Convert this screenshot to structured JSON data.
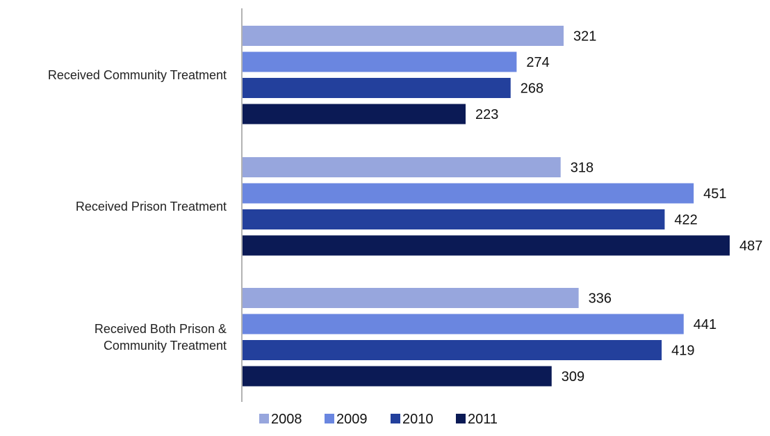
{
  "chart_data": {
    "type": "bar",
    "orientation": "horizontal",
    "categories": [
      [
        "Received Community Treatment"
      ],
      [
        "Received Prison Treatment"
      ],
      [
        "Received Both Prison &",
        "Community Treatment"
      ]
    ],
    "series": [
      {
        "name": "2008",
        "color": "#97a6dd",
        "values": [
          321,
          318,
          336
        ]
      },
      {
        "name": "2009",
        "color": "#6a86e0",
        "values": [
          274,
          451,
          441
        ]
      },
      {
        "name": "2010",
        "color": "#23409c",
        "values": [
          268,
          422,
          419
        ]
      },
      {
        "name": "2011",
        "color": "#0b1a55",
        "values": [
          223,
          487,
          309
        ]
      }
    ],
    "title": "",
    "xlabel": "",
    "ylabel": "",
    "xlim": [
      0,
      487
    ],
    "grid": false,
    "legend_position": "bottom"
  }
}
